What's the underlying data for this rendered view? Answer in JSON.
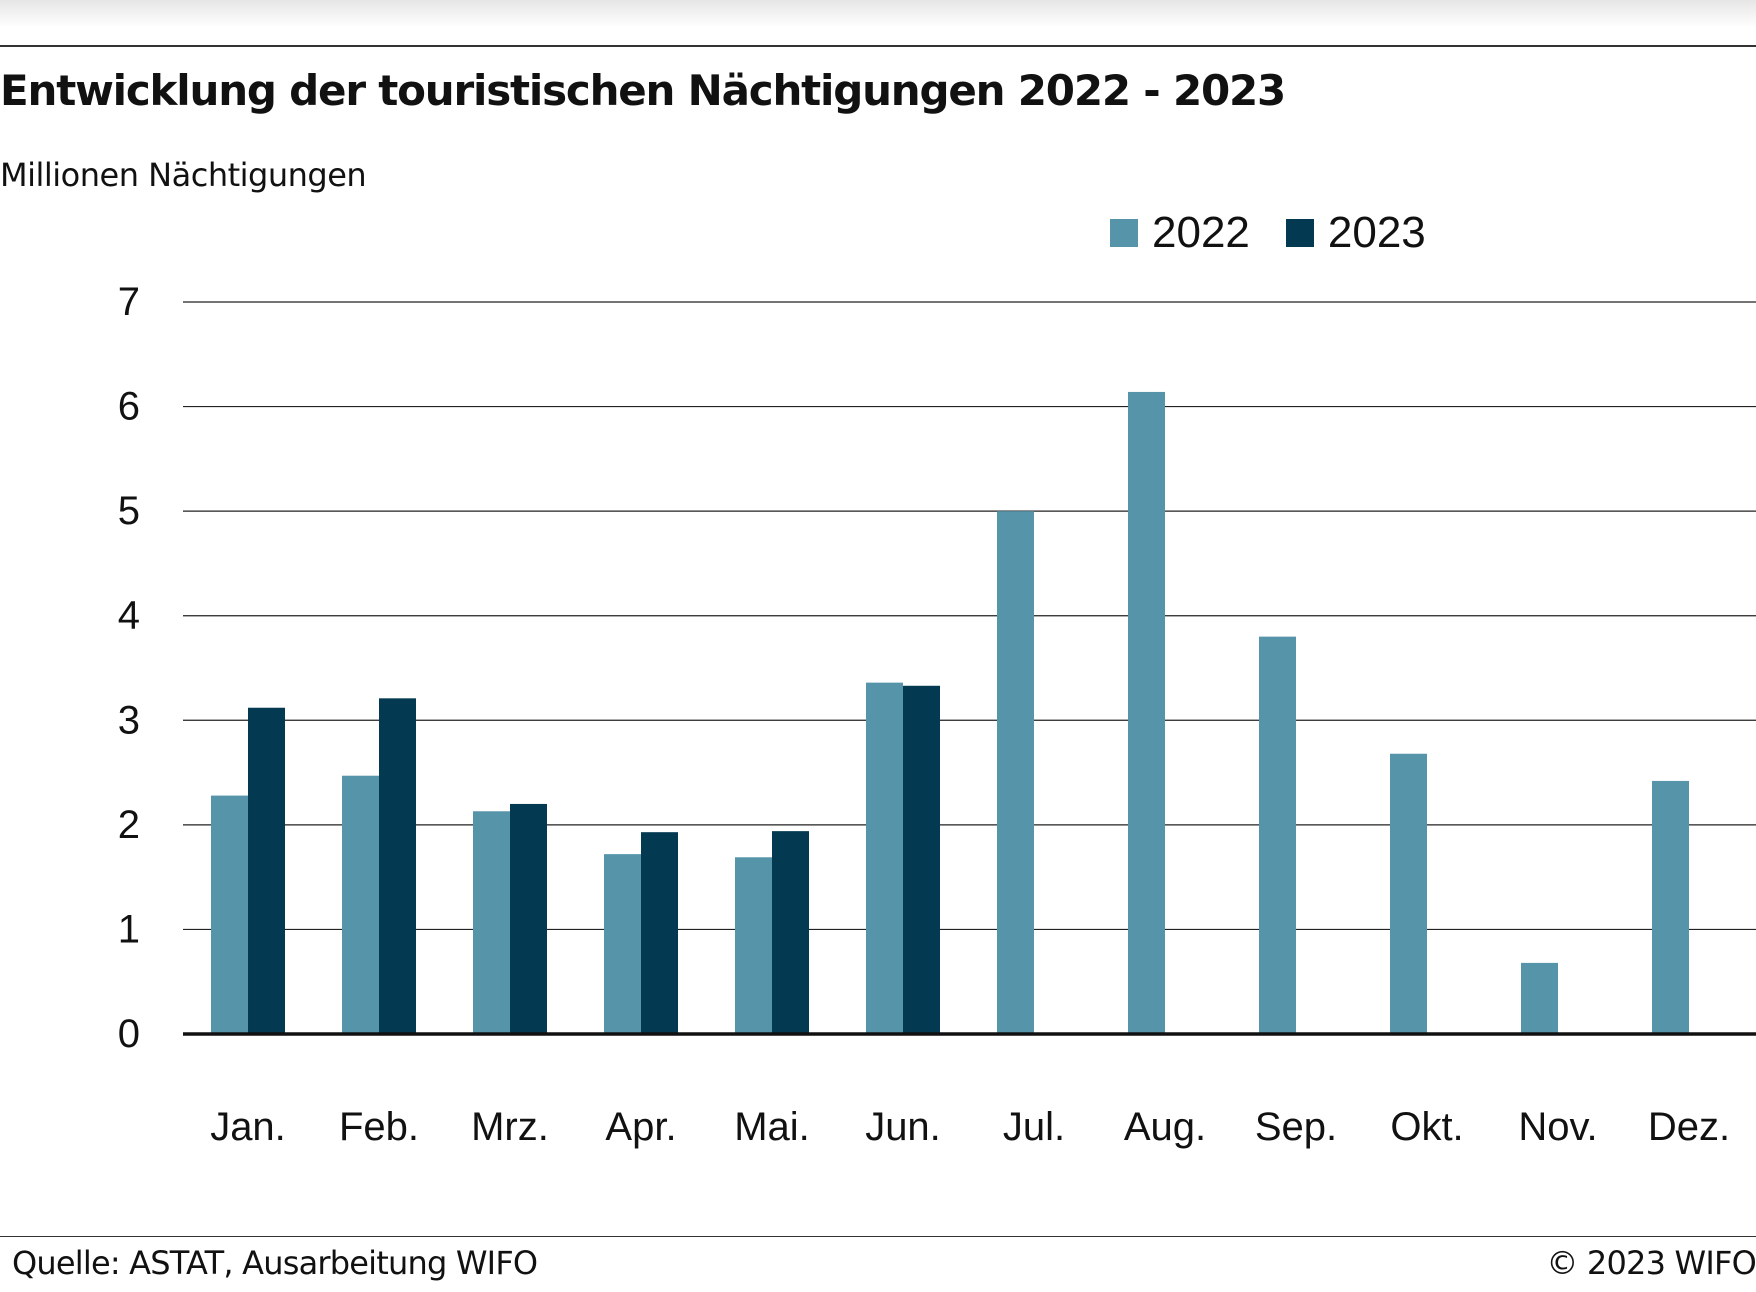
{
  "header": {
    "title": "Entwicklung der touristischen Nächtigungen 2022 - 2023",
    "subtitle": "Millionen Nächtigungen"
  },
  "footer": {
    "source": "Quelle: ASTAT, Ausarbeitung WIFO",
    "copyright": "© 2023 WIFO"
  },
  "chart_data": {
    "type": "bar",
    "title": "Entwicklung der touristischen Nächtigungen 2022 - 2023",
    "ylabel": "Millionen Nächtigungen",
    "xlabel": "",
    "categories": [
      "Jan.",
      "Feb.",
      "Mrz.",
      "Apr.",
      "Mai.",
      "Jun.",
      "Jul.",
      "Aug.",
      "Sep.",
      "Okt.",
      "Nov.",
      "Dez."
    ],
    "series": [
      {
        "name": "2022",
        "color": "#5694a9",
        "values": [
          2.28,
          2.47,
          2.13,
          1.72,
          1.69,
          3.36,
          5.0,
          6.14,
          3.8,
          2.68,
          0.68,
          2.42
        ]
      },
      {
        "name": "2023",
        "color": "#033a51",
        "values": [
          3.12,
          3.21,
          2.2,
          1.93,
          1.94,
          3.33,
          null,
          null,
          null,
          null,
          null,
          null
        ]
      }
    ],
    "ylim": [
      0,
      7
    ],
    "yticks": [
      0,
      1,
      2,
      3,
      4,
      5,
      6,
      7
    ],
    "grid": true,
    "legend_position": "top-right"
  }
}
